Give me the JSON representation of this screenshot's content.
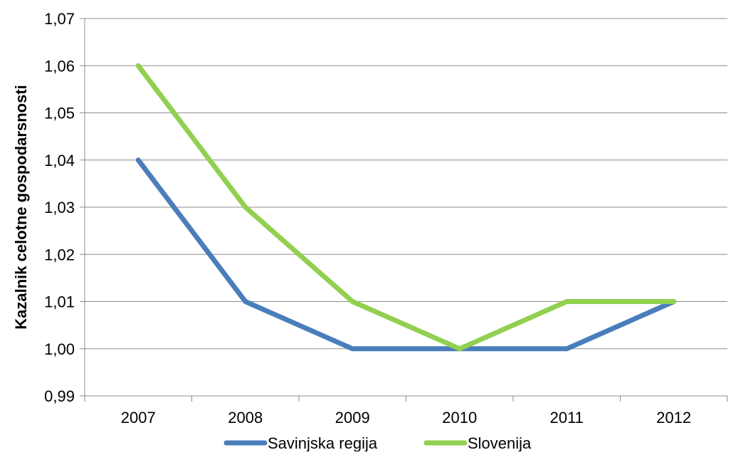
{
  "chart_data": {
    "type": "line",
    "title": "",
    "xlabel": "",
    "ylabel": "Kazalnik celotne gospodarsnosti",
    "categories": [
      "2007",
      "2008",
      "2009",
      "2010",
      "2011",
      "2012"
    ],
    "ylim": [
      0.99,
      1.07
    ],
    "y_ticks": [
      "0,99",
      "1,00",
      "1,01",
      "1,02",
      "1,03",
      "1,04",
      "1,05",
      "1,06",
      "1,07"
    ],
    "grid": true,
    "legend_position": "bottom",
    "series": [
      {
        "name": "Savinjska regija",
        "color": "#4a7ebb",
        "values": [
          1.04,
          1.01,
          1.0,
          1.0,
          1.0,
          1.01
        ]
      },
      {
        "name": "Slovenija",
        "color": "#92d050",
        "values": [
          1.06,
          1.03,
          1.01,
          1.0,
          1.01,
          1.01
        ]
      }
    ]
  }
}
